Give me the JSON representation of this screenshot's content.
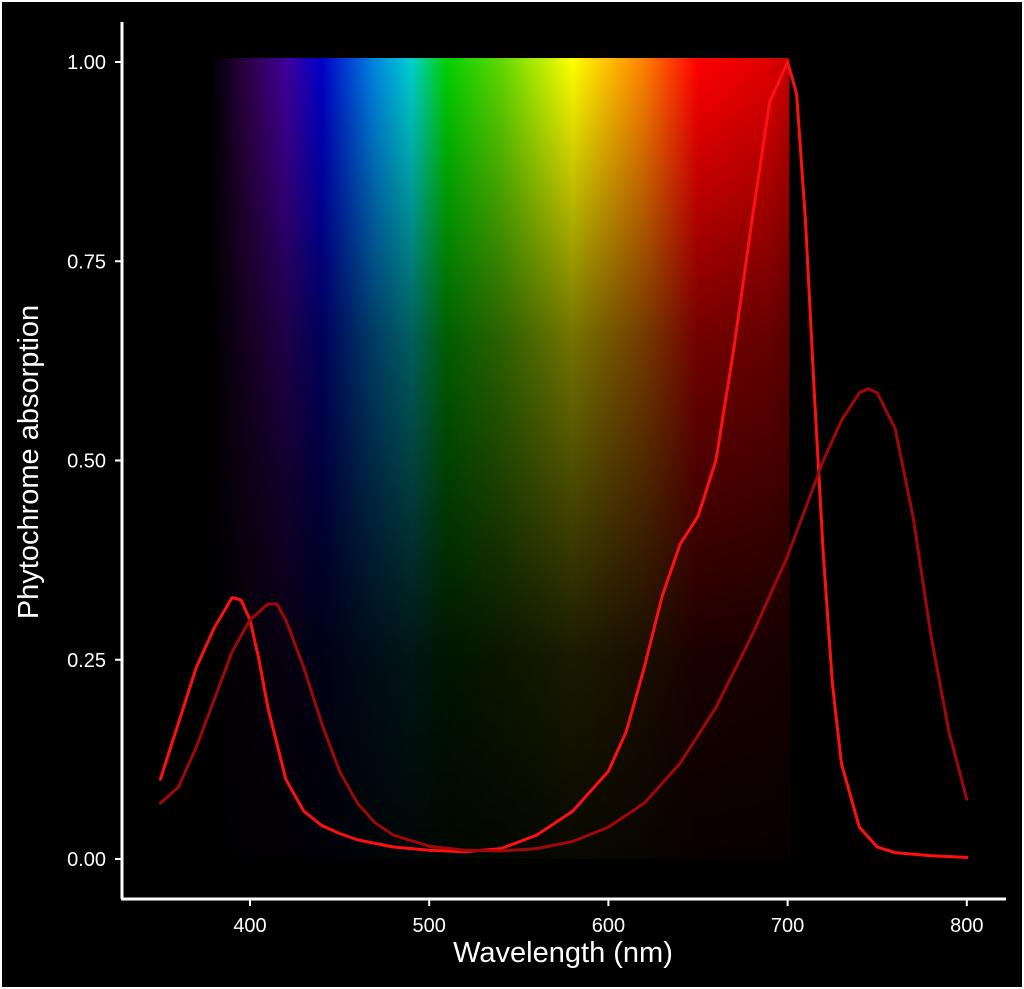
{
  "chart_data": {
    "type": "line",
    "title": "",
    "xlabel": "Wavelength (nm)",
    "ylabel": "Phytochrome absorption",
    "xlim": [
      350,
      800
    ],
    "ylim": [
      0,
      1
    ],
    "x_ticks": [
      "400",
      "500",
      "600",
      "700",
      "800"
    ],
    "y_ticks": [
      "0.00",
      "0.25",
      "0.50",
      "0.75",
      "1.00"
    ],
    "grid": false,
    "legend": "none",
    "background": "#000000",
    "spectrum_band": {
      "x_range": [
        378,
        701
      ],
      "colors": [
        {
          "nm": 378,
          "color": "#000000"
        },
        {
          "nm": 400,
          "color": "#30004a"
        },
        {
          "nm": 420,
          "color": "#40009a"
        },
        {
          "nm": 440,
          "color": "#0000c8"
        },
        {
          "nm": 470,
          "color": "#0088e0"
        },
        {
          "nm": 490,
          "color": "#00d0d0"
        },
        {
          "nm": 510,
          "color": "#00d000"
        },
        {
          "nm": 540,
          "color": "#60d800"
        },
        {
          "nm": 580,
          "color": "#ffff00"
        },
        {
          "nm": 620,
          "color": "#ff8000"
        },
        {
          "nm": 650,
          "color": "#ff0000"
        },
        {
          "nm": 690,
          "color": "#e00000"
        },
        {
          "nm": 701,
          "color": "#c00000"
        }
      ]
    },
    "series": [
      {
        "color": "#ff1010",
        "x": [
          350,
          360,
          370,
          380,
          390,
          395,
          400,
          405,
          410,
          420,
          430,
          440,
          450,
          460,
          480,
          500,
          520,
          540,
          560,
          580,
          600,
          610,
          620,
          630,
          640,
          650,
          660,
          670,
          680,
          690,
          700,
          705,
          710,
          715,
          720,
          725,
          730,
          740,
          750,
          760,
          780,
          800
        ],
        "y": [
          0.1,
          0.17,
          0.24,
          0.29,
          0.328,
          0.325,
          0.3,
          0.25,
          0.19,
          0.1,
          0.06,
          0.042,
          0.032,
          0.024,
          0.015,
          0.011,
          0.009,
          0.013,
          0.03,
          0.06,
          0.11,
          0.16,
          0.24,
          0.33,
          0.395,
          0.43,
          0.5,
          0.64,
          0.8,
          0.95,
          1.0,
          0.96,
          0.8,
          0.58,
          0.38,
          0.22,
          0.12,
          0.04,
          0.015,
          0.008,
          0.004,
          0.002
        ]
      },
      {
        "color": "#a00808",
        "x": [
          350,
          360,
          370,
          380,
          390,
          400,
          410,
          415,
          420,
          430,
          440,
          450,
          460,
          470,
          480,
          500,
          520,
          540,
          560,
          580,
          600,
          620,
          640,
          660,
          680,
          700,
          710,
          720,
          730,
          740,
          745,
          750,
          760,
          770,
          780,
          790,
          800
        ],
        "y": [
          0.07,
          0.09,
          0.14,
          0.2,
          0.26,
          0.3,
          0.32,
          0.32,
          0.3,
          0.24,
          0.17,
          0.11,
          0.07,
          0.045,
          0.03,
          0.016,
          0.011,
          0.01,
          0.013,
          0.022,
          0.04,
          0.07,
          0.12,
          0.19,
          0.28,
          0.38,
          0.44,
          0.5,
          0.55,
          0.585,
          0.59,
          0.585,
          0.54,
          0.43,
          0.28,
          0.16,
          0.075
        ]
      }
    ]
  }
}
